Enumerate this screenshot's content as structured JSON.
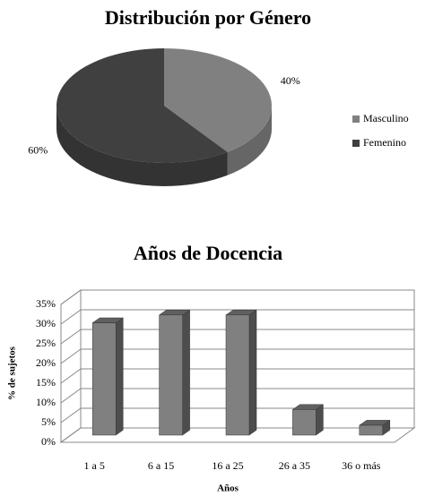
{
  "chart_data": [
    {
      "type": "pie",
      "title": "Distribución por Género",
      "categories": [
        "Masculino",
        "Femenino"
      ],
      "values": [
        40,
        60
      ],
      "value_labels": [
        "40%",
        "60%"
      ],
      "colors": [
        "#808080",
        "#404040"
      ],
      "legend": "right"
    },
    {
      "type": "bar",
      "title": "Años de Docencia",
      "categories": [
        "1 a 5",
        "6 a 15",
        "16 a 25",
        "26 a 35",
        "36 o más"
      ],
      "values": [
        28.5,
        30.5,
        30.5,
        6.5,
        2.5
      ],
      "color": "#808080",
      "xlabel": "Años",
      "ylabel": "% de sujetos",
      "ylim": [
        0,
        35
      ],
      "yticks": [
        {
          "value": 0,
          "label": "0%"
        },
        {
          "value": 5,
          "label": "5%"
        },
        {
          "value": 10,
          "label": "10%"
        },
        {
          "value": 15,
          "label": "15%"
        },
        {
          "value": 20,
          "label": "20%"
        },
        {
          "value": 25,
          "label": "25%"
        },
        {
          "value": 30,
          "label": "30%"
        },
        {
          "value": 35,
          "label": "35%"
        }
      ],
      "grid": true
    }
  ]
}
